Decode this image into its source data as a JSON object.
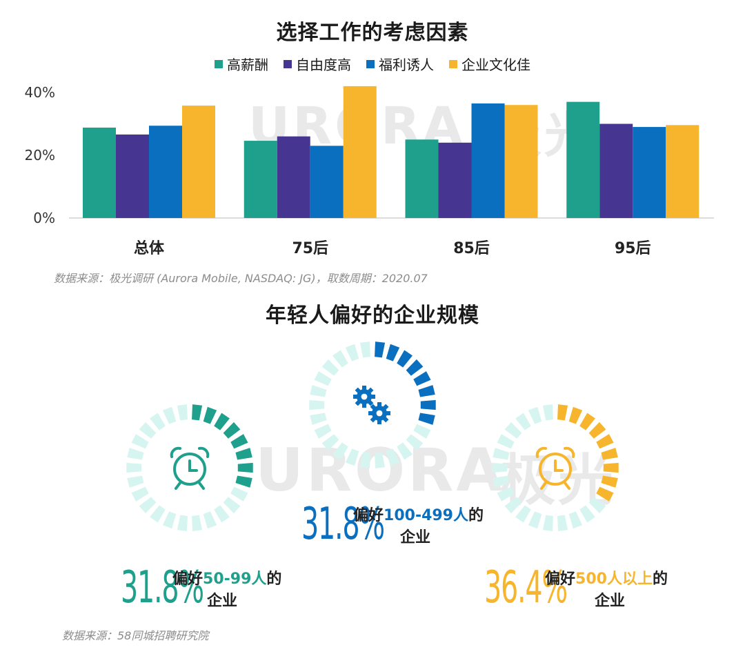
{
  "chart_data": [
    {
      "type": "bar",
      "title": "选择工作的考虑因素",
      "categories": [
        "总体",
        "75后",
        "85后",
        "95后"
      ],
      "series": [
        {
          "name": "高薪酬",
          "color": "#1fa08c",
          "values": [
            28.8,
            24.6,
            25.0,
            37.0
          ]
        },
        {
          "name": "自由度高",
          "color": "#463591",
          "values": [
            26.6,
            26.0,
            24.0,
            30.0
          ]
        },
        {
          "name": "福利诱人",
          "color": "#0a6fbf",
          "values": [
            29.4,
            23.0,
            36.5,
            29.0
          ]
        },
        {
          "name": "企业文化佳",
          "color": "#f6b52c",
          "values": [
            35.8,
            42.0,
            36.0,
            29.6
          ]
        }
      ],
      "ylim": [
        0,
        40
      ],
      "yticks": [
        "0%",
        "20%",
        "40%"
      ],
      "ytick_values": [
        0,
        20,
        40
      ],
      "legend": "top-center",
      "source": "数据来源：极光调研 (Aurora Mobile, NASDAQ: JG)，取数周期：2020.07"
    },
    {
      "type": "infographic",
      "title": "年轻人偏好的企业规模",
      "items": [
        {
          "value_text": "31.8%",
          "value": 31.8,
          "prefix": "偏好",
          "highlight": "50-99人",
          "suffix": "的",
          "line2": "企业",
          "color": "#1fa08c",
          "icon": "alarm-clock-icon"
        },
        {
          "value_text": "31.8%",
          "value": 31.8,
          "prefix": "偏好",
          "highlight": "100-499人",
          "suffix": "的",
          "line2": "企业",
          "color": "#0a6fbf",
          "icon": "gears-icon"
        },
        {
          "value_text": "36.4%",
          "value": 36.4,
          "prefix": "偏好",
          "highlight": "500人以上",
          "suffix": "的",
          "line2": "企业",
          "color": "#f6b52c",
          "icon": "alarm-clock-icon"
        }
      ],
      "source": "数据来源：58同城招聘研究院"
    }
  ],
  "watermark": {
    "latin": "URORA",
    "cjk": "极光"
  }
}
